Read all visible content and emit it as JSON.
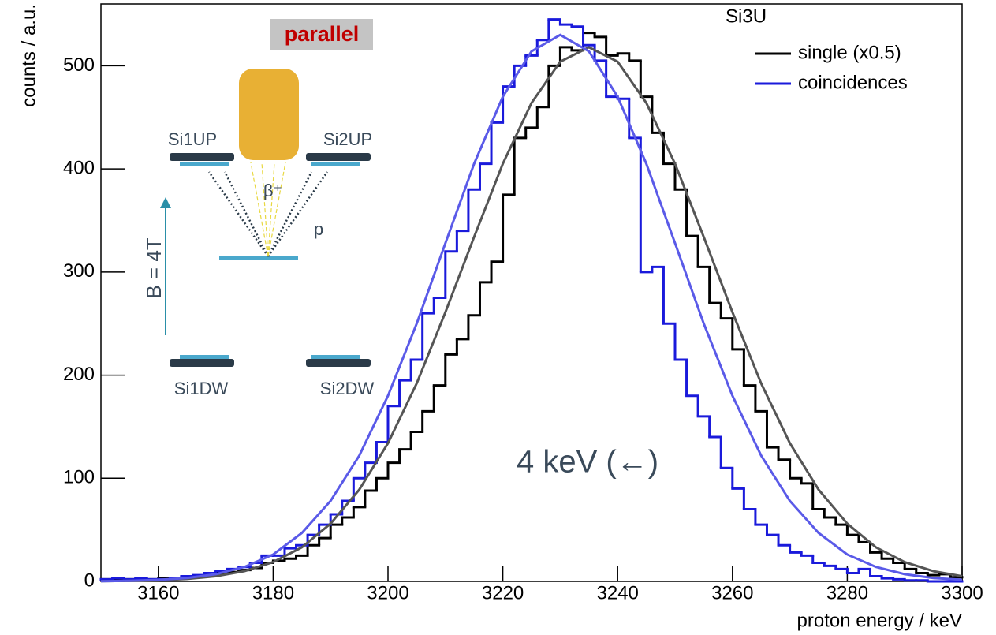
{
  "chart_data": {
    "type": "histogram",
    "xlabel": "proton energy / keV",
    "ylabel": "counts / a.u.",
    "legend_title": "Si3U",
    "annotation": "4 keV (←)",
    "inset": {
      "title": "parallel",
      "det_up_left": "Si1UP",
      "det_up_right": "Si2UP",
      "beta": "β⁺",
      "proton": "p",
      "field": "B = 4T",
      "det_down_left": "Si1DW",
      "det_down_right": "Si2DW"
    },
    "xlim": [
      3150,
      3300
    ],
    "xticks": [
      3160,
      3180,
      3200,
      3220,
      3240,
      3260,
      3280,
      3300
    ],
    "ylim": [
      0,
      560
    ],
    "yticks": [
      0,
      100,
      200,
      300,
      400,
      500
    ],
    "bins": [
      3150,
      3152,
      3154,
      3156,
      3158,
      3160,
      3162,
      3164,
      3166,
      3168,
      3170,
      3172,
      3174,
      3176,
      3178,
      3180,
      3182,
      3184,
      3186,
      3188,
      3190,
      3192,
      3194,
      3196,
      3198,
      3200,
      3202,
      3204,
      3206,
      3208,
      3210,
      3212,
      3214,
      3216,
      3218,
      3220,
      3222,
      3224,
      3226,
      3228,
      3230,
      3232,
      3234,
      3236,
      3238,
      3240,
      3242,
      3244,
      3246,
      3248,
      3250,
      3252,
      3254,
      3256,
      3258,
      3260,
      3262,
      3264,
      3266,
      3268,
      3270,
      3272,
      3274,
      3276,
      3278,
      3280,
      3282,
      3284,
      3286,
      3288,
      3290,
      3292,
      3294,
      3296,
      3298,
      3300
    ],
    "series": [
      {
        "name": "single (x0.5)",
        "color": "#000000",
        "values": [
          2,
          1,
          2,
          1,
          2,
          3,
          3,
          4,
          5,
          6,
          8,
          9,
          11,
          13,
          18,
          20,
          22,
          25,
          35,
          42,
          55,
          62,
          72,
          88,
          100,
          115,
          128,
          145,
          165,
          190,
          220,
          235,
          258,
          290,
          310,
          375,
          430,
          440,
          460,
          500,
          518,
          515,
          532,
          528,
          510,
          512,
          505,
          470,
          435,
          405,
          380,
          335,
          305,
          270,
          255,
          225,
          190,
          165,
          130,
          118,
          100,
          95,
          70,
          62,
          55,
          45,
          38,
          28,
          22,
          18,
          12,
          8,
          6,
          7,
          4
        ]
      },
      {
        "name": "coincidences",
        "color": "#1a1adb",
        "values": [
          2,
          3,
          2,
          3,
          2,
          2,
          3,
          5,
          6,
          8,
          10,
          12,
          14,
          18,
          25,
          25,
          32,
          35,
          45,
          55,
          65,
          78,
          100,
          115,
          135,
          170,
          195,
          215,
          260,
          275,
          320,
          340,
          380,
          405,
          445,
          480,
          500,
          510,
          525,
          545,
          540,
          538,
          520,
          505,
          470,
          468,
          430,
          300,
          305,
          250,
          215,
          180,
          160,
          140,
          110,
          90,
          70,
          55,
          45,
          35,
          28,
          25,
          18,
          15,
          12,
          8,
          12,
          5,
          3,
          2,
          1,
          1,
          0,
          0,
          0
        ]
      }
    ],
    "fit_x": [
      3150,
      3155,
      3160,
      3165,
      3170,
      3175,
      3180,
      3185,
      3190,
      3195,
      3200,
      3205,
      3210,
      3215,
      3220,
      3225,
      3230,
      3235,
      3240,
      3245,
      3250,
      3255,
      3260,
      3265,
      3270,
      3275,
      3280,
      3285,
      3290,
      3295,
      3300
    ],
    "fits": [
      {
        "color": "#555555",
        "values": [
          0.2,
          0.5,
          1.1,
          2.4,
          5,
          9.9,
          18.7,
          33,
          56,
          89,
          134,
          192,
          261,
          334,
          405,
          464,
          504,
          518,
          504,
          464,
          405,
          334,
          261,
          192,
          134,
          89,
          56,
          33,
          18.7,
          9.9,
          5
        ]
      },
      {
        "color": "#5a5ae8",
        "values": [
          0.2,
          0.6,
          1.5,
          3.3,
          7,
          14,
          26,
          47,
          78,
          122,
          180,
          250,
          328,
          405,
          470,
          514,
          530,
          514,
          470,
          405,
          328,
          250,
          180,
          122,
          78,
          47,
          26,
          14,
          7,
          3.3,
          1.5
        ]
      }
    ]
  }
}
